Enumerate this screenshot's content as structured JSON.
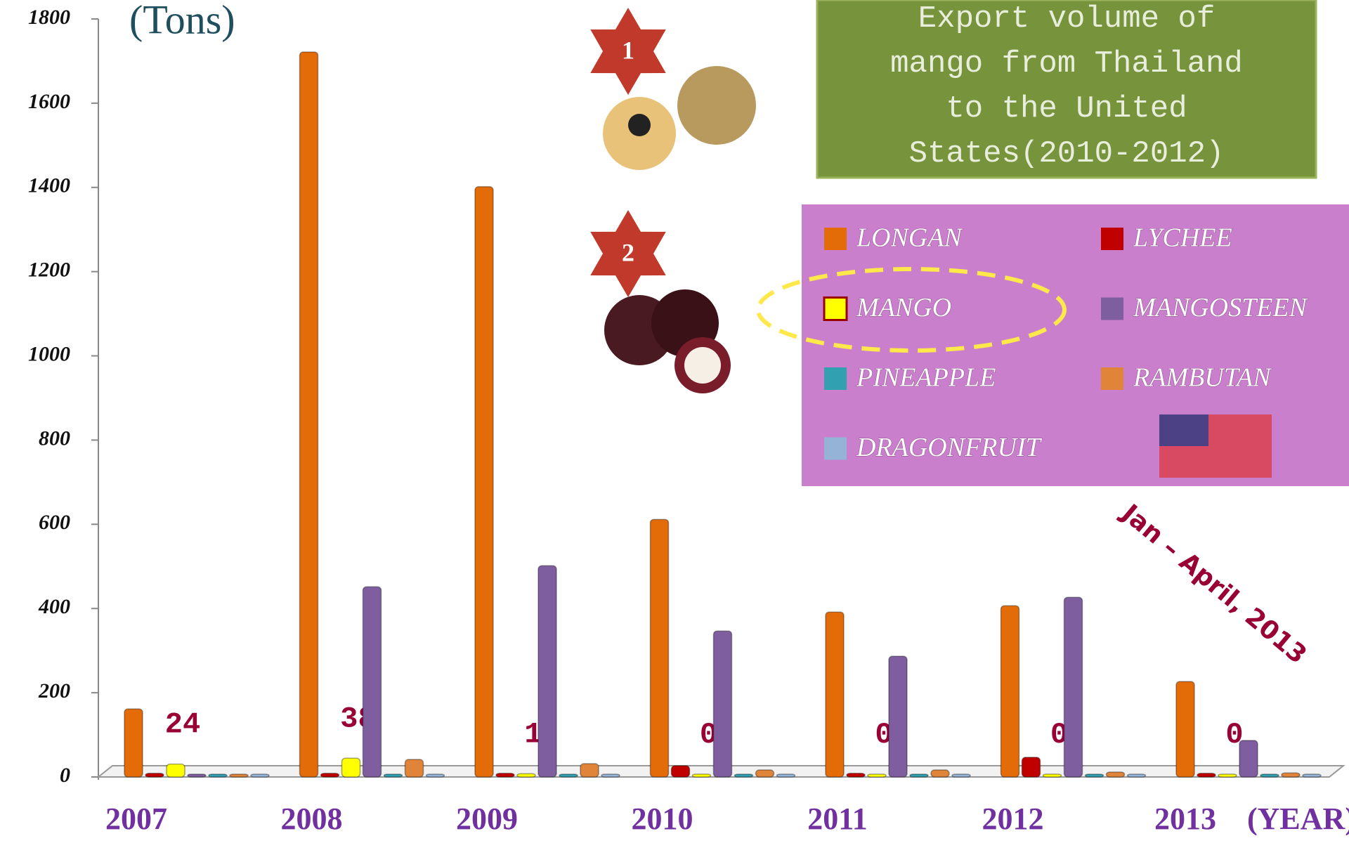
{
  "chart_data": {
    "type": "bar",
    "title": "Export volume of mango from Thailand to the United States(2010-2012)",
    "y_label": "(Tons)",
    "x_label": "(YEAR)",
    "annotation": "Jan – April, 2013",
    "rank_badges": [
      "1",
      "2"
    ],
    "categories": [
      "2007",
      "2008",
      "2009",
      "2010",
      "2011",
      "2012",
      "2013"
    ],
    "series": [
      {
        "name": "LONGAN",
        "color": "#e36c09",
        "values": [
          155,
          1715,
          1395,
          605,
          385,
          400,
          220
        ]
      },
      {
        "name": "LYCHEE",
        "color": "#c00000",
        "values": [
          2,
          2,
          2,
          20,
          2,
          40,
          2
        ]
      },
      {
        "name": "MANGO",
        "color": "#ffff00",
        "values": [
          24,
          38,
          1,
          0,
          0,
          0,
          0
        ]
      },
      {
        "name": "MANGOSTEEN",
        "color": "#7f5ea0",
        "values": [
          0,
          445,
          495,
          340,
          280,
          420,
          80
        ]
      },
      {
        "name": "PINEAPPLE",
        "color": "#31a0b0",
        "values": [
          0,
          0,
          0,
          0,
          0,
          0,
          0
        ]
      },
      {
        "name": "RAMBUTAN",
        "color": "#e0843a",
        "values": [
          0,
          35,
          25,
          10,
          10,
          5,
          3
        ]
      },
      {
        "name": "DRAGONFRUIT",
        "color": "#95b3d7",
        "values": [
          0,
          0,
          0,
          0,
          0,
          0,
          0
        ]
      }
    ],
    "labeled_series": 2,
    "ylim": [
      0,
      1800
    ],
    "yticks": [
      0,
      200,
      400,
      600,
      800,
      1000,
      1200,
      1400,
      1600,
      1800
    ]
  }
}
